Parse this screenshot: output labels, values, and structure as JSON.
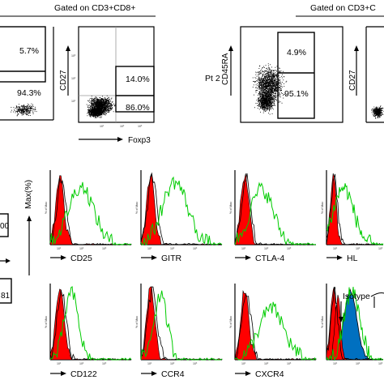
{
  "top": {
    "gate_left": "Gated on CD3+CD8+",
    "gate_right": "Gated on CD3+C",
    "pt2_label": "Pt 2",
    "panel_a": {
      "pct_top": "5.7%",
      "pct_bottom": "94.3%"
    },
    "panel_b": {
      "ylabel": "CD27",
      "xlabel": "Foxp3",
      "pct_top": "14.0%",
      "pct_bottom": "86.0%"
    },
    "panel_c": {
      "ylabel": "CD45RA",
      "pct_top": "4.9%",
      "pct_bottom": "95.1%"
    },
    "panel_d": {
      "ylabel": "CD27"
    }
  },
  "bottom": {
    "left_fragments": {
      "top": "00",
      "bottom": "81"
    },
    "ylabel": "Max(%)",
    "small_ylabel": "% of Max",
    "isotype_label": "Isotype",
    "hist_labels": [
      "CD25",
      "GITR",
      "CTLA-4",
      "HL",
      "CD122",
      "CCR4",
      "CXCR4"
    ],
    "tick_labels": [
      "10¹",
      "10²",
      "10³"
    ]
  },
  "colors": {
    "isotype_fill": "#ff0000",
    "stain_line": "#00cc00",
    "blue_fill": "#0070c0",
    "dots": "#000000"
  }
}
